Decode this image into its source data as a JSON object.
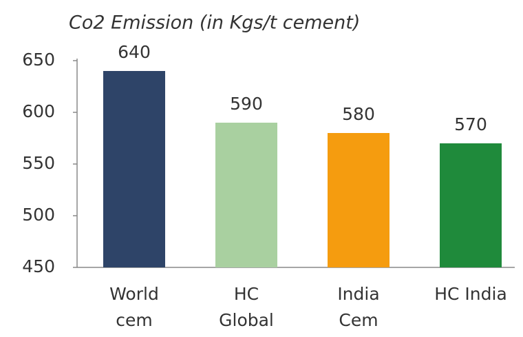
{
  "chart_data": {
    "type": "bar",
    "title": "Co2 Emission (in Kgs/t cement)",
    "categories": [
      "World\ncem",
      "HC\nGlobal",
      "India\nCem",
      "HC India"
    ],
    "values": [
      640,
      590,
      580,
      570
    ],
    "colors": [
      "#2e4468",
      "#a9d0a0",
      "#f59c0f",
      "#1f8a3b"
    ],
    "ylim": [
      450,
      650
    ],
    "yticks": [
      450,
      500,
      550,
      600,
      650
    ],
    "grid": false
  }
}
